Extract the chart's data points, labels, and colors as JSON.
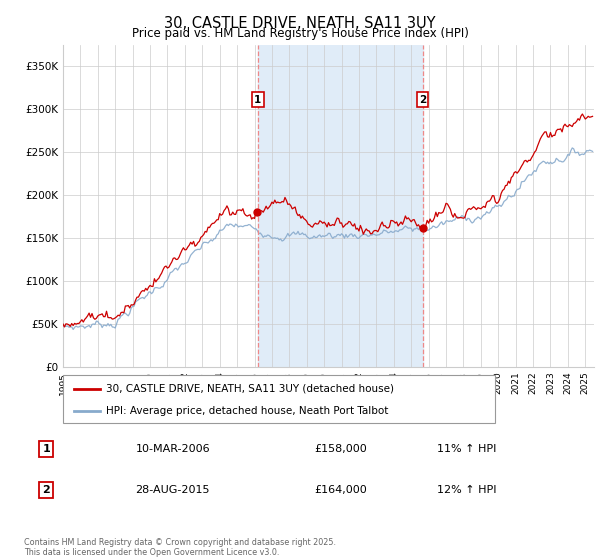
{
  "title": "30, CASTLE DRIVE, NEATH, SA11 3UY",
  "subtitle": "Price paid vs. HM Land Registry's House Price Index (HPI)",
  "title_fontsize": 10.5,
  "subtitle_fontsize": 8.5,
  "ylabel_ticks": [
    "£0",
    "£50K",
    "£100K",
    "£150K",
    "£200K",
    "£250K",
    "£300K",
    "£350K"
  ],
  "ytick_vals": [
    0,
    50000,
    100000,
    150000,
    200000,
    250000,
    300000,
    350000
  ],
  "ylim": [
    0,
    375000
  ],
  "xlim_start": 1995.0,
  "xlim_end": 2025.5,
  "sale1_date": 2006.19,
  "sale1_price": 158000,
  "sale1_label": "1",
  "sale2_date": 2015.65,
  "sale2_price": 164000,
  "sale2_label": "2",
  "red_color": "#cc0000",
  "blue_color": "#88aacc",
  "shaded_color": "#e0ecf8",
  "vline_color": "#ee8888",
  "grid_color": "#cccccc",
  "legend_entry1": "30, CASTLE DRIVE, NEATH, SA11 3UY (detached house)",
  "legend_entry2": "HPI: Average price, detached house, Neath Port Talbot",
  "table_row1": [
    "1",
    "10-MAR-2006",
    "£158,000",
    "11% ↑ HPI"
  ],
  "table_row2": [
    "2",
    "28-AUG-2015",
    "£164,000",
    "12% ↑ HPI"
  ],
  "footnote": "Contains HM Land Registry data © Crown copyright and database right 2025.\nThis data is licensed under the Open Government Licence v3.0."
}
